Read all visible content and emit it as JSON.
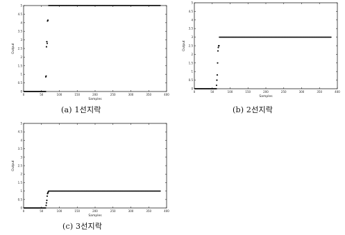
{
  "chart_data": [
    {
      "id": "a",
      "type": "scatter",
      "caption": "(a) 1선지락",
      "xlabel": "Samples",
      "ylabel": "Output",
      "xlim": [
        0,
        400
      ],
      "ylim": [
        0,
        5
      ],
      "xticks": [
        0,
        50,
        100,
        150,
        200,
        250,
        300,
        350,
        400
      ],
      "yticks": [
        0,
        0.5,
        1,
        1.5,
        2,
        2.5,
        3,
        3.5,
        4,
        4.5,
        5
      ],
      "series": [
        {
          "segments": [
            {
              "x_start": 1,
              "x_end": 62,
              "y": 0,
              "step": 1
            },
            {
              "x_start": 70,
              "x_end": 383,
              "y": 5,
              "step": 1.4
            }
          ],
          "points": [
            [
              62,
              0.85
            ],
            [
              63,
              0.9
            ],
            [
              64,
              2.6
            ],
            [
              65,
              2.9
            ],
            [
              66,
              2.8
            ],
            [
              67,
              4.1
            ],
            [
              68,
              4.15
            ]
          ]
        }
      ]
    },
    {
      "id": "b",
      "type": "scatter",
      "caption": "(b) 2선지락",
      "xlabel": "Samples",
      "ylabel": "Output",
      "xlim": [
        0,
        400
      ],
      "ylim": [
        0,
        5
      ],
      "xticks": [
        0,
        50,
        100,
        150,
        200,
        250,
        300,
        350,
        400
      ],
      "yticks": [
        0,
        0.5,
        1,
        1.5,
        2,
        2.5,
        3,
        3.5,
        4,
        4.5,
        5
      ],
      "series": [
        {
          "segments": [
            {
              "x_start": 1,
              "x_end": 62,
              "y": 0,
              "step": 1
            },
            {
              "x_start": 70,
              "x_end": 383,
              "y": 3,
              "step": 1.4
            }
          ],
          "points": [
            [
              62,
              0.2
            ],
            [
              63,
              0.5
            ],
            [
              64,
              0.8
            ],
            [
              65,
              1.5
            ],
            [
              66,
              2.2
            ],
            [
              67,
              2.4
            ],
            [
              68,
              2.5
            ],
            [
              69,
              2.5
            ]
          ]
        }
      ]
    },
    {
      "id": "c",
      "type": "scatter",
      "caption": "(c) 3선지락",
      "xlabel": "Samples",
      "ylabel": "Output",
      "xlim": [
        0,
        400
      ],
      "ylim": [
        0,
        5
      ],
      "xticks": [
        0,
        50,
        100,
        150,
        200,
        250,
        300,
        350,
        400
      ],
      "yticks": [
        0,
        0.5,
        1,
        1.5,
        2,
        2.5,
        3,
        3.5,
        4,
        4.5,
        5
      ],
      "series": [
        {
          "segments": [
            {
              "x_start": 1,
              "x_end": 62,
              "y": 0,
              "step": 1
            },
            {
              "x_start": 70,
              "x_end": 383,
              "y": 1,
              "step": 1.4
            }
          ],
          "points": [
            [
              63,
              0.15
            ],
            [
              64,
              0.3
            ],
            [
              65,
              0.45
            ],
            [
              66,
              0.7
            ],
            [
              67,
              0.85
            ],
            [
              68,
              0.9
            ],
            [
              69,
              0.95
            ]
          ]
        }
      ]
    }
  ]
}
